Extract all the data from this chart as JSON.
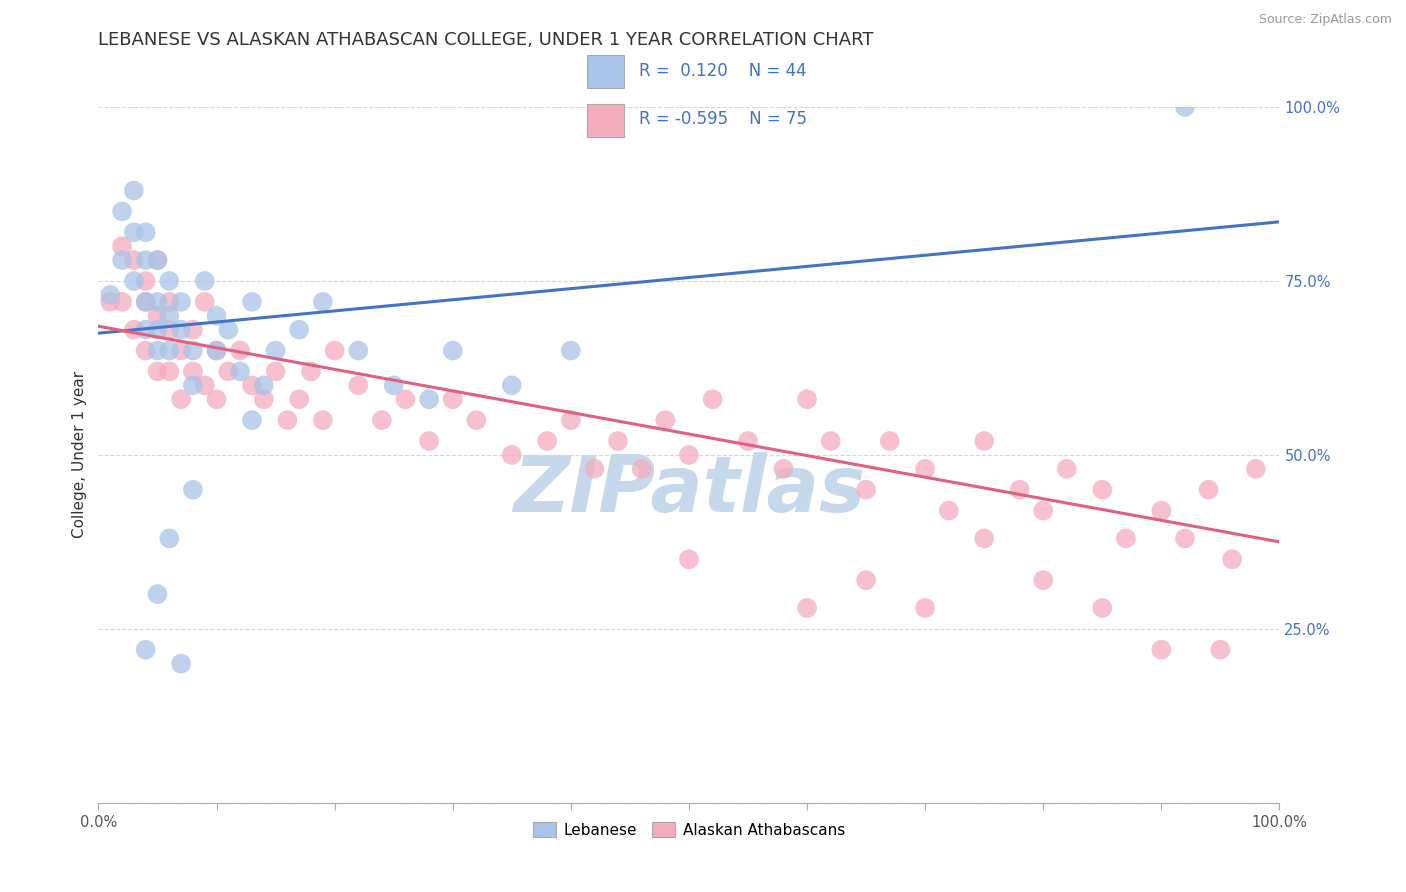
{
  "title": "LEBANESE VS ALASKAN ATHABASCAN COLLEGE, UNDER 1 YEAR CORRELATION CHART",
  "source": "Source: ZipAtlas.com",
  "ylabel": "College, Under 1 year",
  "xlabel": "",
  "xlim": [
    0.0,
    1.0
  ],
  "ylim": [
    0.0,
    1.0
  ],
  "xticks": [
    0.0,
    0.1,
    0.2,
    0.3,
    0.4,
    0.5,
    0.6,
    0.7,
    0.8,
    0.9,
    1.0
  ],
  "xticklabels_show": [
    "0.0%",
    "",
    "",
    "",
    "",
    "",
    "",
    "",
    "",
    "",
    "100.0%"
  ],
  "yticks": [
    0.0,
    0.25,
    0.5,
    0.75,
    1.0
  ],
  "yticklabels": [
    "",
    "25.0%",
    "50.0%",
    "75.0%",
    "100.0%"
  ],
  "blue_color": "#A8C4E8",
  "pink_color": "#F4ABBE",
  "blue_line_color": "#4472C4",
  "pink_line_color": "#E06080",
  "label1": "Lebanese",
  "label2": "Alaskan Athabascans",
  "watermark": "ZIPatlas",
  "blue_trend_x": [
    0.0,
    1.0
  ],
  "blue_trend_y": [
    0.675,
    0.835
  ],
  "pink_trend_x": [
    0.0,
    1.0
  ],
  "pink_trend_y": [
    0.685,
    0.375
  ],
  "blue_scatter_x": [
    0.01,
    0.02,
    0.02,
    0.03,
    0.03,
    0.03,
    0.04,
    0.04,
    0.04,
    0.04,
    0.05,
    0.05,
    0.05,
    0.05,
    0.06,
    0.06,
    0.06,
    0.07,
    0.07,
    0.08,
    0.08,
    0.09,
    0.1,
    0.1,
    0.11,
    0.12,
    0.13,
    0.14,
    0.15,
    0.17,
    0.19,
    0.22,
    0.25,
    0.28,
    0.3,
    0.35,
    0.4,
    0.13,
    0.08,
    0.06,
    0.05,
    0.04,
    0.92,
    0.07
  ],
  "blue_scatter_y": [
    0.73,
    0.85,
    0.78,
    0.82,
    0.75,
    0.88,
    0.78,
    0.82,
    0.72,
    0.68,
    0.78,
    0.72,
    0.68,
    0.65,
    0.75,
    0.7,
    0.65,
    0.72,
    0.68,
    0.65,
    0.6,
    0.75,
    0.7,
    0.65,
    0.68,
    0.62,
    0.72,
    0.6,
    0.65,
    0.68,
    0.72,
    0.65,
    0.6,
    0.58,
    0.65,
    0.6,
    0.65,
    0.55,
    0.45,
    0.38,
    0.3,
    0.22,
    1.0,
    0.2
  ],
  "pink_scatter_x": [
    0.01,
    0.02,
    0.02,
    0.03,
    0.03,
    0.04,
    0.04,
    0.04,
    0.05,
    0.05,
    0.05,
    0.06,
    0.06,
    0.06,
    0.07,
    0.07,
    0.08,
    0.08,
    0.09,
    0.09,
    0.1,
    0.1,
    0.11,
    0.12,
    0.13,
    0.14,
    0.15,
    0.16,
    0.17,
    0.18,
    0.19,
    0.2,
    0.22,
    0.24,
    0.26,
    0.28,
    0.3,
    0.32,
    0.35,
    0.38,
    0.4,
    0.42,
    0.44,
    0.46,
    0.48,
    0.5,
    0.52,
    0.55,
    0.58,
    0.6,
    0.62,
    0.65,
    0.67,
    0.7,
    0.72,
    0.75,
    0.78,
    0.8,
    0.82,
    0.85,
    0.87,
    0.9,
    0.92,
    0.94,
    0.96,
    0.98,
    0.5,
    0.6,
    0.65,
    0.7,
    0.75,
    0.8,
    0.85,
    0.9,
    0.95
  ],
  "pink_scatter_y": [
    0.72,
    0.8,
    0.72,
    0.78,
    0.68,
    0.75,
    0.65,
    0.72,
    0.7,
    0.62,
    0.78,
    0.68,
    0.62,
    0.72,
    0.65,
    0.58,
    0.62,
    0.68,
    0.6,
    0.72,
    0.65,
    0.58,
    0.62,
    0.65,
    0.6,
    0.58,
    0.62,
    0.55,
    0.58,
    0.62,
    0.55,
    0.65,
    0.6,
    0.55,
    0.58,
    0.52,
    0.58,
    0.55,
    0.5,
    0.52,
    0.55,
    0.48,
    0.52,
    0.48,
    0.55,
    0.5,
    0.58,
    0.52,
    0.48,
    0.58,
    0.52,
    0.45,
    0.52,
    0.48,
    0.42,
    0.52,
    0.45,
    0.42,
    0.48,
    0.45,
    0.38,
    0.42,
    0.38,
    0.45,
    0.35,
    0.48,
    0.35,
    0.28,
    0.32,
    0.28,
    0.38,
    0.32,
    0.28,
    0.22,
    0.22
  ],
  "background_color": "#FFFFFF",
  "grid_color": "#CCCCCC",
  "watermark_color": "#C5D8EC",
  "title_fontsize": 13,
  "axis_label_fontsize": 11,
  "tick_fontsize": 10.5,
  "legend_fontsize": 12
}
